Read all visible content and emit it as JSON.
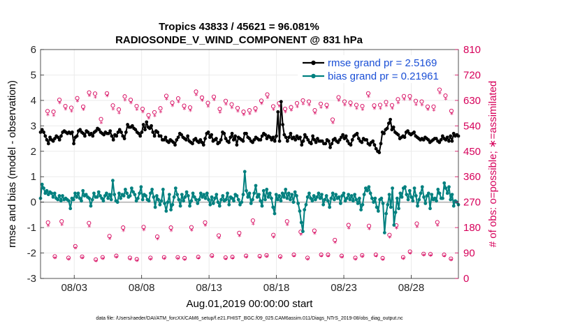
{
  "chart_data": {
    "type": "line",
    "title_line1": "Tropics 43833 / 45621 = 96.081%",
    "title_line2": "RADIOSONDE_V_WIND_COMPONENT @ 831 hPa",
    "xlabel": "Aug.01,2019 00:00:00 start",
    "ylabel_left": "rmse and bias (model - observation)",
    "ylabel_right": "# of obs: o=possible; ∗=assimilated",
    "footnote": "data file: /Users/raeder/DAI/ATM_forcXX/CAM6_setup/f.e21.FHIST_BGC.f09_025.CAM6assim.011/Diags_NTrS_2019-08/obs_diag_output.nc",
    "xlim": [
      0.5,
      31.5
    ],
    "ylim_left": [
      -3,
      6
    ],
    "ylim_right": [
      0,
      810
    ],
    "x_ticks": [
      3,
      8,
      13,
      18,
      23,
      28
    ],
    "x_tick_labels": [
      "08/03",
      "08/08",
      "08/13",
      "08/18",
      "08/23",
      "08/28"
    ],
    "y_left_ticks": [
      "-3",
      "-2",
      "-1",
      "0",
      "1",
      "2",
      "3",
      "4",
      "5",
      "6"
    ],
    "y_right_ticks": [
      "0",
      "90",
      "180",
      "270",
      "360",
      "450",
      "540",
      "630",
      "720",
      "810"
    ],
    "legend": [
      {
        "label": "rmse grand pr = 2.5169",
        "color": "#000000"
      },
      {
        "label": "bias grand pr = 0.21961",
        "color": "#00807f"
      }
    ],
    "colors": {
      "rmse": "#000000",
      "bias": "#00807f",
      "obs": "#d6005a",
      "zero_line": "#b3b3b3",
      "grid": "#ebebeb",
      "legend_text": "#1a4fd6"
    },
    "series": [
      {
        "name": "rmse",
        "axis": "left",
        "values": [
          2.75,
          2.85,
          2.75,
          2.6,
          2.45,
          2.3,
          2.55,
          2.45,
          2.4,
          2.5,
          2.6,
          2.55,
          2.45,
          2.6,
          2.75,
          2.8,
          2.75,
          2.7,
          2.75,
          2.7,
          2.75,
          2.3,
          2.55,
          2.6,
          2.8,
          2.85,
          2.75,
          2.7,
          2.6,
          2.8,
          2.75,
          2.65,
          2.7,
          2.6,
          2.75,
          2.8,
          2.9,
          2.85,
          2.75,
          2.7,
          2.65,
          2.75,
          2.7,
          2.7,
          2.8,
          2.6,
          2.45,
          2.65,
          2.6,
          2.75,
          2.85,
          2.75,
          2.6,
          2.5,
          2.75,
          3.05,
          2.95,
          2.95,
          3.0,
          2.9,
          2.85,
          2.75,
          2.7,
          2.6,
          2.75,
          3.05,
          2.85,
          3.15,
          2.95,
          2.9,
          3.0,
          2.75,
          2.6,
          2.8,
          2.75,
          2.6,
          2.6,
          2.45,
          2.45,
          2.55,
          2.4,
          2.35,
          2.45,
          2.4,
          2.35,
          2.25,
          2.45,
          2.55,
          2.7,
          2.65,
          2.55,
          2.5,
          2.45,
          2.6,
          2.4,
          2.35,
          2.3,
          2.45,
          2.5,
          2.4,
          2.35,
          2.45,
          2.35,
          2.25,
          2.5,
          2.7,
          2.75,
          2.55,
          2.65,
          2.4,
          2.45,
          2.5,
          2.3,
          2.35,
          2.45,
          2.75,
          2.7,
          2.5,
          2.4,
          2.35,
          2.55,
          2.7,
          2.45,
          2.6,
          2.25,
          2.55,
          2.5,
          2.45,
          2.4,
          2.7,
          2.7,
          2.55,
          2.5,
          2.4,
          2.35,
          2.45,
          2.55,
          2.5,
          2.45,
          2.45,
          2.6,
          2.7,
          2.65,
          2.5,
          2.6,
          2.55,
          2.45,
          2.55,
          2.4,
          2.6,
          3.55,
          2.4,
          3.95,
          3.05,
          2.65,
          2.55,
          2.4,
          2.55,
          2.7,
          2.5,
          2.55,
          2.45,
          2.6,
          2.5,
          2.55,
          2.25,
          2.4,
          2.65,
          2.55,
          2.45,
          2.35,
          2.3,
          2.6,
          2.45,
          2.35,
          2.5,
          2.4,
          2.4,
          2.4,
          2.3,
          2.3,
          2.45,
          2.4,
          2.15,
          2.3,
          2.45,
          2.5,
          2.4,
          2.35,
          2.45,
          2.55,
          2.65,
          2.5,
          2.6,
          2.4,
          2.3,
          2.25,
          2.45,
          2.6,
          2.65,
          2.7,
          2.5,
          2.4,
          2.35,
          2.5,
          2.45,
          2.45,
          2.3,
          2.25,
          2.35,
          2.4,
          2.25,
          2.1,
          2.0,
          1.95,
          2.3,
          2.75,
          2.7,
          2.85,
          2.9,
          3.1,
          3.25,
          2.85,
          2.95,
          2.75,
          2.7,
          2.65,
          2.5,
          2.55,
          2.6,
          2.55,
          2.75,
          2.8,
          2.7,
          2.65,
          2.7,
          2.75,
          2.6,
          2.55,
          2.5,
          2.45,
          2.5,
          2.45,
          2.55,
          2.5,
          2.45,
          2.35,
          2.4,
          2.45,
          2.5,
          2.5,
          2.4,
          2.35,
          2.45,
          2.6,
          2.5,
          2.45,
          2.55,
          2.4,
          2.6,
          2.4,
          2.7,
          2.6,
          2.65,
          2.6
        ]
      },
      {
        "name": "bias",
        "axis": "left",
        "values": [
          0.15,
          0.7,
          0.55,
          0.35,
          0.45,
          0.3,
          0.4,
          0.35,
          0.2,
          0.35,
          0.15,
          0.1,
          0.25,
          0.05,
          0.25,
          0.1,
          0.15,
          0.1,
          0.05,
          -0.25,
          0.15,
          0.1,
          0.35,
          0.2,
          0.35,
          0.15,
          0.05,
          0.45,
          0.25,
          0.3,
          0.2,
          0.15,
          -0.15,
          0.1,
          0.35,
          0.2,
          0.2,
          0.4,
          0.25,
          0.15,
          0.05,
          0.25,
          0.35,
          0.15,
          0.3,
          0.1,
          0.85,
          0.3,
          0.05,
          0.0,
          0.35,
          0.15,
          0.3,
          0.25,
          0.5,
          0.35,
          0.2,
          0.25,
          0.55,
          0.4,
          0.3,
          0.05,
          0.15,
          0.35,
          0.6,
          0.1,
          0.3,
          0.25,
          0.1,
          0.05,
          0.35,
          0.5,
          0.2,
          -0.2,
          0.25,
          0.1,
          -0.1,
          0.05,
          0.5,
          -0.05,
          -0.35,
          0.0,
          0.3,
          -0.3,
          -0.1,
          0.2,
          0.55,
          0.3,
          0.1,
          -0.15,
          0.3,
          0.05,
          0.2,
          0.4,
          0.25,
          -0.15,
          0.05,
          0.35,
          0.2,
          0.1,
          -0.05,
          0.1,
          0.35,
          0.2,
          0.3,
          0.15,
          0.35,
          0.1,
          -0.1,
          0.2,
          -0.05,
          0.15,
          0.3,
          0.0,
          -0.15,
          0.1,
          0.25,
          0.05,
          0.1,
          0.35,
          -0.1,
          0.2,
          0.15,
          0.05,
          0.3,
          0.25,
          0.1,
          -0.1,
          0.0,
          0.3,
          1.2,
          0.45,
          0.2,
          0.35,
          -0.05,
          0.1,
          0.35,
          0.65,
          0.2,
          0.3,
          0.05,
          -0.15,
          0.45,
          0.1,
          0.5,
          0.2,
          0.35,
          0.15,
          -0.2,
          -0.45,
          0.3,
          0.1,
          0.25,
          0.05,
          0.35,
          0.2,
          0.5,
          0.15,
          0.35,
          0.1,
          0.3,
          0.0,
          0.4,
          0.25,
          -0.05,
          -0.35,
          -0.8,
          -1.15,
          -0.3,
          -0.1,
          0.2,
          0.35,
          0.15,
          0.05,
          0.25,
          0.1,
          0.2,
          0.35,
          0.15,
          0.3,
          -0.1,
          0.1,
          0.25,
          0.05,
          -0.2,
          0.15,
          0.35,
          0.1,
          0.3,
          0.15,
          0.2,
          -0.05,
          0.25,
          0.35,
          0.05,
          0.15,
          0.3,
          0.1,
          0.25,
          0.05,
          0.3,
          0.1,
          -0.05,
          0.15,
          -0.3,
          -0.1,
          0.3,
          0.55,
          0.45,
          0.6,
          0.35,
          0.15,
          0.0,
          0.15,
          -0.2,
          -0.35,
          0.1,
          0.15,
          -0.05,
          -1.2,
          -0.45,
          -0.1,
          0.3,
          -0.2,
          0.55,
          -0.9,
          -0.4,
          0.15,
          -0.25,
          0.35,
          0.2,
          0.55,
          0.6,
          0.3,
          0.1,
          0.45,
          0.2,
          0.05,
          0.55,
          0.25,
          -0.15,
          0.1,
          0.35,
          0.6,
          0.2,
          -0.05,
          0.25,
          0.35,
          -0.25,
          0.3,
          0.1,
          0.15,
          0.05,
          0.5,
          0.35,
          0.15,
          0.15,
          0.75,
          0.55,
          0.35,
          0.6,
          0.1,
          0.3,
          -0.15,
          0.05,
          0.0,
          -0.1
        ]
      },
      {
        "name": "obs_possible_high",
        "axis": "right",
        "values": [
          592,
          590,
          632,
          610,
          604,
          638,
          608,
          658,
          654,
          564,
          655,
          612,
          598,
          644,
          632,
          610,
          600,
          578,
          588,
          602,
          646,
          622,
          637,
          611,
          605,
          661,
          640,
          621,
          643,
          600,
          628,
          616,
          603,
          590,
          595,
          602,
          629,
          651,
          609,
          620,
          600,
          606,
          620,
          630,
          626,
          595,
          618,
          614,
          562,
          641,
          626,
          622,
          614,
          610,
          655,
          612,
          614,
          624,
          613,
          634,
          645,
          645,
          628,
          626,
          608,
          608,
          668,
          647,
          593
        ]
      },
      {
        "name": "obs_assimilated_high",
        "axis": "right",
        "values": [
          578,
          575,
          620,
          598,
          590,
          626,
          596,
          646,
          640,
          550,
          644,
          598,
          584,
          630,
          620,
          596,
          588,
          566,
          574,
          588,
          634,
          610,
          623,
          599,
          593,
          648,
          628,
          607,
          631,
          587,
          615,
          602,
          590,
          578,
          582,
          590,
          617,
          638,
          596,
          608,
          588,
          594,
          606,
          616,
          613,
          583,
          604,
          602,
          550,
          628,
          612,
          610,
          600,
          596,
          642,
          600,
          600,
          610,
          600,
          620,
          632,
          632,
          614,
          613,
          596,
          594,
          654,
          634,
          581
        ]
      },
      {
        "name": "obs_possible_low",
        "axis": "right",
        "values": [
          198,
          78,
          202,
          73,
          114,
          77,
          196,
          67,
          75,
          150,
          80,
          180,
          73,
          68,
          182,
          73,
          148,
          75,
          180,
          75,
          72,
          181,
          76,
          198,
          81,
          152,
          74,
          76,
          161,
          80,
          205,
          79,
          82,
          154,
          78,
          202,
          84,
          165,
          73,
          169,
          84,
          84,
          136,
          80,
          189,
          73,
          82,
          186,
          84,
          72,
          154,
          188,
          75,
          95,
          194,
          87,
          86,
          199,
          84,
          70
        ]
      },
      {
        "name": "obs_assimilated_low",
        "axis": "right",
        "values": [
          185,
          72,
          189,
          67,
          106,
          71,
          183,
          61,
          69,
          140,
          74,
          168,
          67,
          62,
          170,
          67,
          138,
          69,
          168,
          69,
          66,
          169,
          70,
          186,
          75,
          142,
          68,
          70,
          150,
          74,
          192,
          73,
          76,
          144,
          72,
          189,
          78,
          154,
          67,
          158,
          78,
          78,
          126,
          74,
          177,
          67,
          76,
          174,
          78,
          66,
          144,
          176,
          69,
          88,
          182,
          81,
          80,
          186,
          78,
          64
        ]
      }
    ]
  }
}
